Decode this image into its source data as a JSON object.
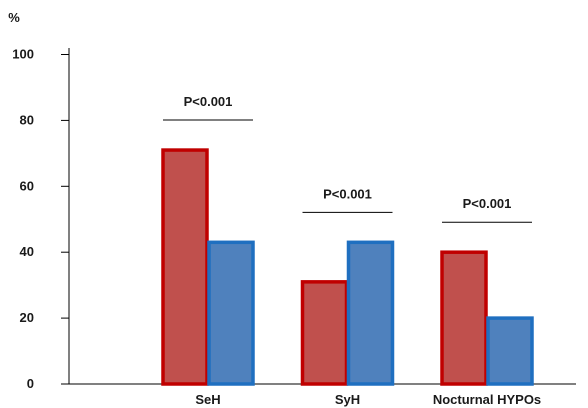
{
  "chart_data": {
    "type": "bar",
    "title": "",
    "xlabel": "",
    "ylabel": "%",
    "ylim": [
      0,
      100
    ],
    "yticks": [
      0,
      20,
      40,
      60,
      80,
      100
    ],
    "categories": [
      "SeH",
      "SyH",
      "Nocturnal HYPOs"
    ],
    "series": [
      {
        "values": [
          71,
          31,
          40
        ],
        "fill": "#c0504d",
        "stroke": "#c00000"
      },
      {
        "values": [
          43,
          43,
          20
        ],
        "fill": "#4f81bd",
        "stroke": "#1f6fc0"
      }
    ],
    "annotations": [
      "P<0.001",
      "P<0.001",
      "P<0.001"
    ],
    "grid": false,
    "legend": "none"
  }
}
